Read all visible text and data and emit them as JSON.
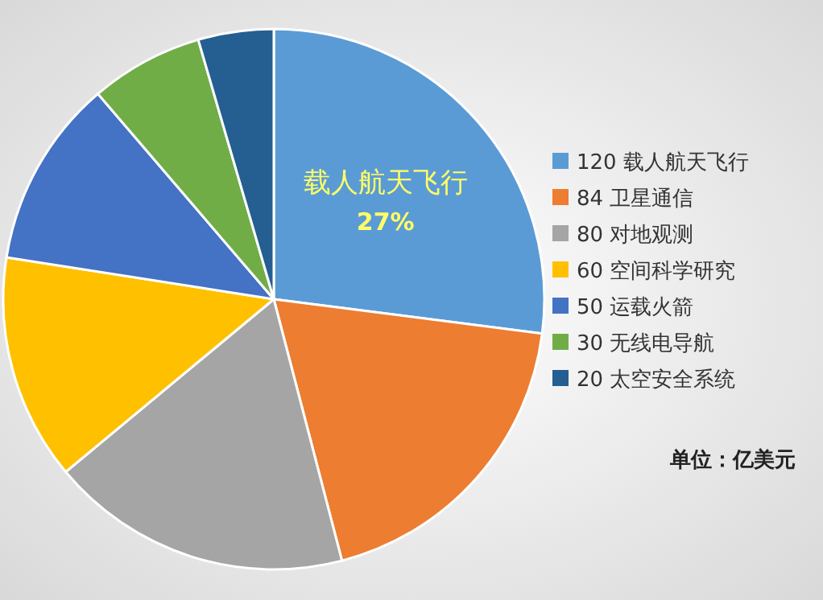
{
  "chart_data": {
    "type": "pie",
    "categories": [
      "载人航天飞行",
      "卫星通信",
      "对地观测",
      "空间科学研究",
      "运载火箭",
      "无线电导航",
      "太空安全系统"
    ],
    "values": [
      120,
      84,
      80,
      60,
      50,
      30,
      20
    ],
    "colors": [
      "#5b9bd5",
      "#ed7d31",
      "#a5a5a5",
      "#ffc000",
      "#4472c4",
      "#70ad47",
      "#255e91"
    ],
    "legend": "right",
    "data_labels": true,
    "annotations": [
      {
        "text": "27%",
        "x": "载人航天飞行"
      },
      "单位：亿美元"
    ]
  }
}
